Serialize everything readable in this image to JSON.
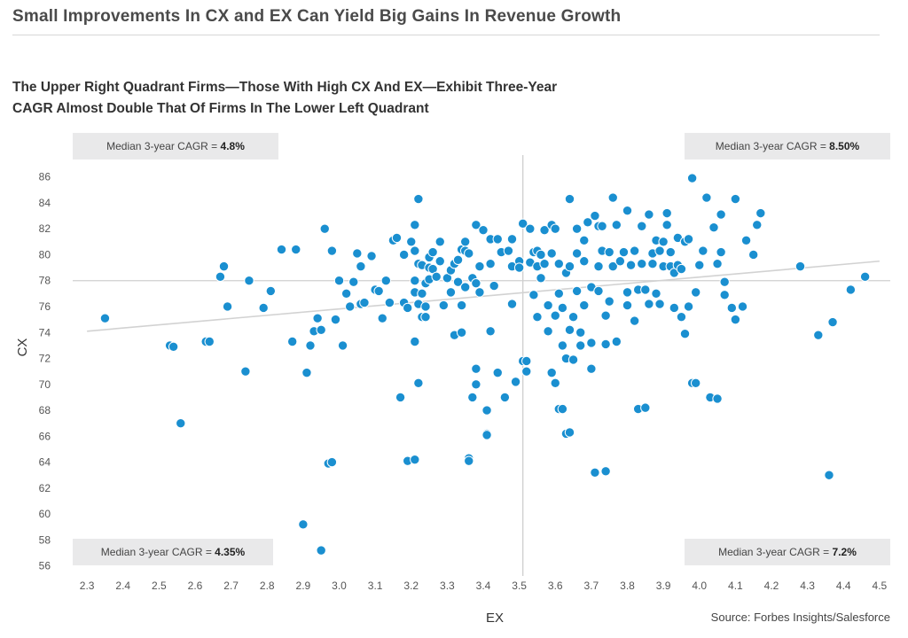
{
  "header": {
    "title": "Small Improvements In CX and EX Can Yield Big Gains In Revenue Growth"
  },
  "subtitle": {
    "line1": "The Upper Right Quadrant Firms—Those With High CX And EX—Exhibit Three-Year",
    "line2": "CAGR Almost Double That Of Firms In The Lower Left Quadrant"
  },
  "quadrants": {
    "top_left": {
      "label": "Median 3-year CAGR = ",
      "value": "4.8%"
    },
    "top_right": {
      "label": "Median 3-year CAGR = ",
      "value": "8.50%"
    },
    "bottom_left": {
      "label": "Median 3-year CAGR = ",
      "value": "4.35%"
    },
    "bottom_right": {
      "label": "Median 3-year CAGR = ",
      "value": "7.2%"
    }
  },
  "source": "Source: Forbes Insights/Salesforce",
  "colors": {
    "point": "#1a8fd0",
    "point_stroke": "#ffffff",
    "grid_line": "#cfcfcf",
    "trend_line": "#d2d2d2"
  },
  "chart_data": {
    "type": "scatter",
    "xlabel": "EX",
    "ylabel": "CX",
    "xlim": [
      2.28,
      4.52
    ],
    "ylim": [
      55.5,
      87
    ],
    "x_ticks": [
      "2.3",
      "2.4",
      "2.5",
      "2.6",
      "2.7",
      "2.8",
      "2.9",
      "3.0",
      "3.1",
      "3.2",
      "3.3",
      "3.4",
      "3.5",
      "3.6",
      "3.7",
      "3.8",
      "3.9",
      "4.0",
      "4.1",
      "4.2",
      "4.3",
      "4.4",
      "4.5"
    ],
    "y_ticks": [
      "56",
      "58",
      "60",
      "62",
      "64",
      "66",
      "68",
      "70",
      "72",
      "74",
      "76",
      "78",
      "80",
      "82",
      "84",
      "86"
    ],
    "quadrant_split": {
      "x": 3.51,
      "y": 78
    },
    "trend_line": {
      "x": [
        2.3,
        4.5
      ],
      "y": [
        74.1,
        79.5
      ]
    },
    "points": [
      [
        2.35,
        75.1
      ],
      [
        2.53,
        73.0
      ],
      [
        2.54,
        72.9
      ],
      [
        2.56,
        67.0
      ],
      [
        2.63,
        73.3
      ],
      [
        2.64,
        73.3
      ],
      [
        2.67,
        78.3
      ],
      [
        2.68,
        79.1
      ],
      [
        2.69,
        76.0
      ],
      [
        2.74,
        71.0
      ],
      [
        2.75,
        78.0
      ],
      [
        2.79,
        75.9
      ],
      [
        2.81,
        77.2
      ],
      [
        2.84,
        80.4
      ],
      [
        2.87,
        73.3
      ],
      [
        2.88,
        80.4
      ],
      [
        2.9,
        59.2
      ],
      [
        2.91,
        70.9
      ],
      [
        2.92,
        73.0
      ],
      [
        2.93,
        74.1
      ],
      [
        2.94,
        75.1
      ],
      [
        2.95,
        74.2
      ],
      [
        2.96,
        82.0
      ],
      [
        2.97,
        63.9
      ],
      [
        2.98,
        64.0
      ],
      [
        2.98,
        80.3
      ],
      [
        2.99,
        75.0
      ],
      [
        3.0,
        78.0
      ],
      [
        3.01,
        73.0
      ],
      [
        3.02,
        77.0
      ],
      [
        3.03,
        76.0
      ],
      [
        2.95,
        57.2
      ],
      [
        3.04,
        77.9
      ],
      [
        3.05,
        80.1
      ],
      [
        3.06,
        79.1
      ],
      [
        3.06,
        76.2
      ],
      [
        3.07,
        76.3
      ],
      [
        3.09,
        79.9
      ],
      [
        3.1,
        77.3
      ],
      [
        3.11,
        77.2
      ],
      [
        3.12,
        75.1
      ],
      [
        3.13,
        78.0
      ],
      [
        3.14,
        76.3
      ],
      [
        3.15,
        81.1
      ],
      [
        3.16,
        81.3
      ],
      [
        3.17,
        69.0
      ],
      [
        3.18,
        76.3
      ],
      [
        3.18,
        80.0
      ],
      [
        3.19,
        75.9
      ],
      [
        3.19,
        64.1
      ],
      [
        3.2,
        81.0
      ],
      [
        3.21,
        73.3
      ],
      [
        3.21,
        82.3
      ],
      [
        3.21,
        64.2
      ],
      [
        3.21,
        80.3
      ],
      [
        3.21,
        78.0
      ],
      [
        3.21,
        77.1
      ],
      [
        3.22,
        84.3
      ],
      [
        3.22,
        79.3
      ],
      [
        3.22,
        76.2
      ],
      [
        3.22,
        70.1
      ],
      [
        3.23,
        77.0
      ],
      [
        3.23,
        79.2
      ],
      [
        3.23,
        75.2
      ],
      [
        3.24,
        75.2
      ],
      [
        3.24,
        77.8
      ],
      [
        3.24,
        76.0
      ],
      [
        3.25,
        78.1
      ],
      [
        3.25,
        79.8
      ],
      [
        3.25,
        79.0
      ],
      [
        3.26,
        78.9
      ],
      [
        3.26,
        80.2
      ],
      [
        3.27,
        78.3
      ],
      [
        3.28,
        81.0
      ],
      [
        3.28,
        79.5
      ],
      [
        3.29,
        76.1
      ],
      [
        3.3,
        78.2
      ],
      [
        3.31,
        77.1
      ],
      [
        3.31,
        78.8
      ],
      [
        3.32,
        79.3
      ],
      [
        3.32,
        73.8
      ],
      [
        3.33,
        77.9
      ],
      [
        3.33,
        79.6
      ],
      [
        3.34,
        80.4
      ],
      [
        3.34,
        76.1
      ],
      [
        3.34,
        74.0
      ],
      [
        3.35,
        80.3
      ],
      [
        3.35,
        81.0
      ],
      [
        3.35,
        77.5
      ],
      [
        3.36,
        64.3
      ],
      [
        3.36,
        64.1
      ],
      [
        3.36,
        80.1
      ],
      [
        3.37,
        78.2
      ],
      [
        3.37,
        69.0
      ],
      [
        3.38,
        82.3
      ],
      [
        3.38,
        70.0
      ],
      [
        3.38,
        71.2
      ],
      [
        3.38,
        77.8
      ],
      [
        3.39,
        79.1
      ],
      [
        3.39,
        77.1
      ],
      [
        3.4,
        81.9
      ],
      [
        3.41,
        66.2
      ],
      [
        3.41,
        66.1
      ],
      [
        3.41,
        68.0
      ],
      [
        3.42,
        74.1
      ],
      [
        3.42,
        81.2
      ],
      [
        3.42,
        79.3
      ],
      [
        3.43,
        77.6
      ],
      [
        3.44,
        81.2
      ],
      [
        3.44,
        70.9
      ],
      [
        3.45,
        80.2
      ],
      [
        3.46,
        69.0
      ],
      [
        3.47,
        80.3
      ],
      [
        3.48,
        79.1
      ],
      [
        3.48,
        76.2
      ],
      [
        3.48,
        81.2
      ],
      [
        3.49,
        70.2
      ],
      [
        3.5,
        79.5
      ],
      [
        3.5,
        79.0
      ],
      [
        3.51,
        82.4
      ],
      [
        3.51,
        71.8
      ],
      [
        3.52,
        71.8
      ],
      [
        3.52,
        71.0
      ],
      [
        3.53,
        82.0
      ],
      [
        3.53,
        79.4
      ],
      [
        3.54,
        76.9
      ],
      [
        3.54,
        80.2
      ],
      [
        3.55,
        75.2
      ],
      [
        3.55,
        80.3
      ],
      [
        3.55,
        79.1
      ],
      [
        3.56,
        78.2
      ],
      [
        3.56,
        80.0
      ],
      [
        3.57,
        81.9
      ],
      [
        3.57,
        79.3
      ],
      [
        3.58,
        74.1
      ],
      [
        3.58,
        76.1
      ],
      [
        3.59,
        80.1
      ],
      [
        3.59,
        70.9
      ],
      [
        3.59,
        82.3
      ],
      [
        3.6,
        82.0
      ],
      [
        3.6,
        75.3
      ],
      [
        3.6,
        70.1
      ],
      [
        3.61,
        68.1
      ],
      [
        3.61,
        77.0
      ],
      [
        3.61,
        79.3
      ],
      [
        3.62,
        68.1
      ],
      [
        3.62,
        73.0
      ],
      [
        3.62,
        75.9
      ],
      [
        3.63,
        66.2
      ],
      [
        3.63,
        72.0
      ],
      [
        3.63,
        78.6
      ],
      [
        3.64,
        66.3
      ],
      [
        3.64,
        84.3
      ],
      [
        3.64,
        79.1
      ],
      [
        3.64,
        74.2
      ],
      [
        3.65,
        71.9
      ],
      [
        3.65,
        75.2
      ],
      [
        3.66,
        80.1
      ],
      [
        3.66,
        82.0
      ],
      [
        3.66,
        77.2
      ],
      [
        3.67,
        74.0
      ],
      [
        3.67,
        73.0
      ],
      [
        3.68,
        81.1
      ],
      [
        3.68,
        79.5
      ],
      [
        3.68,
        76.1
      ],
      [
        3.69,
        82.5
      ],
      [
        3.7,
        71.2
      ],
      [
        3.7,
        73.2
      ],
      [
        3.7,
        77.5
      ],
      [
        3.71,
        83.0
      ],
      [
        3.71,
        63.2
      ],
      [
        3.72,
        82.2
      ],
      [
        3.72,
        79.1
      ],
      [
        3.72,
        77.2
      ],
      [
        3.73,
        80.3
      ],
      [
        3.73,
        82.2
      ],
      [
        3.74,
        75.3
      ],
      [
        3.74,
        73.1
      ],
      [
        3.74,
        63.3
      ],
      [
        3.75,
        76.4
      ],
      [
        3.75,
        80.2
      ],
      [
        3.76,
        79.1
      ],
      [
        3.76,
        84.4
      ],
      [
        3.77,
        73.3
      ],
      [
        3.77,
        82.3
      ],
      [
        3.78,
        79.5
      ],
      [
        3.79,
        80.2
      ],
      [
        3.8,
        83.4
      ],
      [
        3.8,
        76.1
      ],
      [
        3.8,
        77.1
      ],
      [
        3.81,
        79.2
      ],
      [
        3.82,
        80.3
      ],
      [
        3.82,
        74.9
      ],
      [
        3.83,
        77.3
      ],
      [
        3.83,
        68.1
      ],
      [
        3.84,
        82.2
      ],
      [
        3.84,
        79.3
      ],
      [
        3.85,
        68.2
      ],
      [
        3.85,
        77.3
      ],
      [
        3.86,
        76.2
      ],
      [
        3.86,
        83.1
      ],
      [
        3.87,
        80.1
      ],
      [
        3.87,
        79.3
      ],
      [
        3.88,
        81.1
      ],
      [
        3.88,
        77.0
      ],
      [
        3.89,
        76.2
      ],
      [
        3.89,
        80.3
      ],
      [
        3.9,
        79.1
      ],
      [
        3.9,
        81.0
      ],
      [
        3.91,
        82.3
      ],
      [
        3.91,
        83.2
      ],
      [
        3.92,
        80.2
      ],
      [
        3.92,
        79.1
      ],
      [
        3.93,
        75.9
      ],
      [
        3.93,
        78.6
      ],
      [
        3.94,
        79.2
      ],
      [
        3.94,
        81.3
      ],
      [
        3.95,
        75.2
      ],
      [
        3.95,
        78.9
      ],
      [
        3.96,
        81.0
      ],
      [
        3.96,
        73.9
      ],
      [
        3.97,
        81.2
      ],
      [
        3.97,
        76.0
      ],
      [
        3.98,
        70.1
      ],
      [
        3.98,
        85.9
      ],
      [
        3.99,
        70.1
      ],
      [
        3.99,
        77.1
      ],
      [
        4.0,
        79.2
      ],
      [
        4.01,
        80.3
      ],
      [
        4.02,
        84.4
      ],
      [
        4.03,
        69.0
      ],
      [
        4.04,
        82.1
      ],
      [
        4.05,
        79.3
      ],
      [
        4.05,
        68.9
      ],
      [
        4.06,
        83.1
      ],
      [
        4.06,
        80.2
      ],
      [
        4.07,
        77.9
      ],
      [
        4.07,
        76.9
      ],
      [
        4.09,
        75.9
      ],
      [
        4.1,
        84.3
      ],
      [
        4.1,
        75.0
      ],
      [
        4.12,
        76.0
      ],
      [
        4.13,
        81.1
      ],
      [
        4.15,
        80.0
      ],
      [
        4.16,
        82.3
      ],
      [
        4.17,
        83.2
      ],
      [
        4.28,
        79.1
      ],
      [
        4.33,
        73.8
      ],
      [
        4.36,
        63.0
      ],
      [
        4.37,
        74.8
      ],
      [
        4.42,
        77.3
      ],
      [
        4.46,
        78.3
      ]
    ]
  }
}
